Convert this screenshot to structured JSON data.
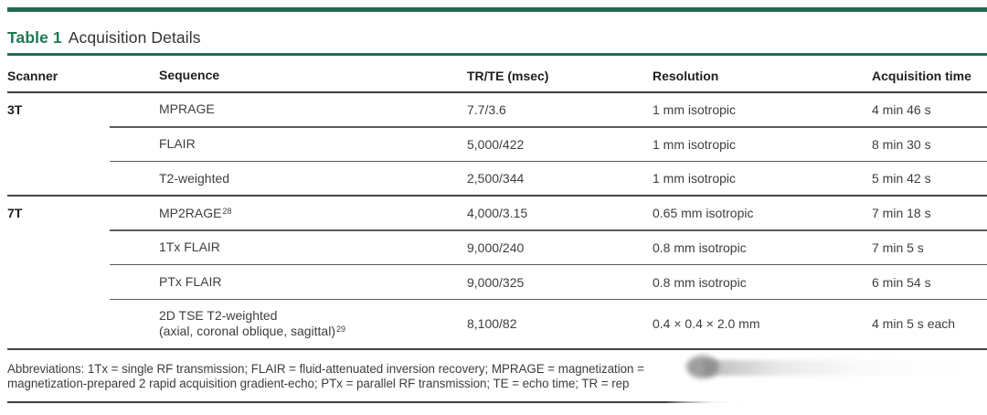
{
  "title": {
    "label": "Table 1",
    "text": "Acquisition Details"
  },
  "colors": {
    "accent_green": "#226b52",
    "title_green": "#1f7a52",
    "rule_dark": "#3f3f3f",
    "body_text": "#3e3e3e"
  },
  "table": {
    "columns": [
      "Scanner",
      "Sequence",
      "TR/TE (msec)",
      "Resolution",
      "Acquisition time"
    ],
    "rows": [
      {
        "scanner": "3T",
        "sequence": "MPRAGE",
        "tr_te": "7.7/3.6",
        "resolution": "1 mm isotropic",
        "time": "4 min 46 s",
        "sep": "none"
      },
      {
        "scanner": "",
        "sequence": "FLAIR",
        "tr_te": "5,000/422",
        "resolution": "1 mm isotropic",
        "time": "8 min 30 s",
        "sep": "partial"
      },
      {
        "scanner": "",
        "sequence": "T2-weighted",
        "tr_te": "2,500/344",
        "resolution": "1 mm isotropic",
        "time": "5 min 42 s",
        "sep": "partial"
      },
      {
        "scanner": "7T",
        "sequence": "MP2RAGE",
        "sequence_sup": "28",
        "tr_te": "4,000/3.15",
        "resolution": "0.65 mm isotropic",
        "time": "7 min 18 s",
        "sep": "full"
      },
      {
        "scanner": "",
        "sequence": "1Tx FLAIR",
        "tr_te": "9,000/240",
        "resolution": "0.8 mm isotropic",
        "time": "7 min 5 s",
        "sep": "partial"
      },
      {
        "scanner": "",
        "sequence": "PTx FLAIR",
        "tr_te": "9,000/325",
        "resolution": "0.8 mm isotropic",
        "time": "6 min 54 s",
        "sep": "partial"
      },
      {
        "scanner": "",
        "sequence": "2D TSE T2-weighted",
        "sequence_line2": "(axial, coronal oblique, sagittal)",
        "sequence_line2_sup": "29",
        "tr_te": "8,100/82",
        "resolution": "0.4 × 0.4 × 2.0 mm",
        "time": "4 min 5 s each",
        "sep": "partial"
      }
    ]
  },
  "footnote": {
    "line1": "Abbreviations: 1Tx = single RF transmission; FLAIR = fluid-attenuated inversion recovery; MPRAGE = magnetization =",
    "line2": "magnetization-prepared 2 rapid acquisition gradient-echo; PTx = parallel RF transmission; TE = echo time; TR = rep"
  }
}
